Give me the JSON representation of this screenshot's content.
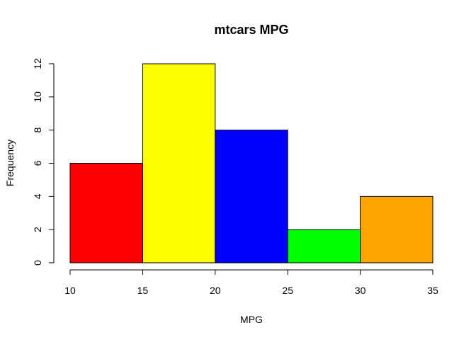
{
  "chart_data": {
    "type": "bar",
    "title": "mtcars MPG",
    "xlabel": "MPG",
    "ylabel": "Frequency",
    "bins": [
      {
        "from": 10,
        "to": 15,
        "value": 6,
        "color": "#FF0000"
      },
      {
        "from": 15,
        "to": 20,
        "value": 12,
        "color": "#FFFF00"
      },
      {
        "from": 20,
        "to": 25,
        "value": 8,
        "color": "#0000FF"
      },
      {
        "from": 25,
        "to": 30,
        "value": 2,
        "color": "#00FF00"
      },
      {
        "from": 30,
        "to": 35,
        "value": 4,
        "color": "#FFA500"
      }
    ],
    "xlim": [
      10,
      35
    ],
    "ylim": [
      0,
      12
    ],
    "x_ticks": [
      "10",
      "15",
      "20",
      "25",
      "30",
      "35"
    ],
    "y_ticks": [
      "0",
      "2",
      "4",
      "6",
      "8",
      "10",
      "12"
    ],
    "grid": false,
    "legend": "none"
  }
}
